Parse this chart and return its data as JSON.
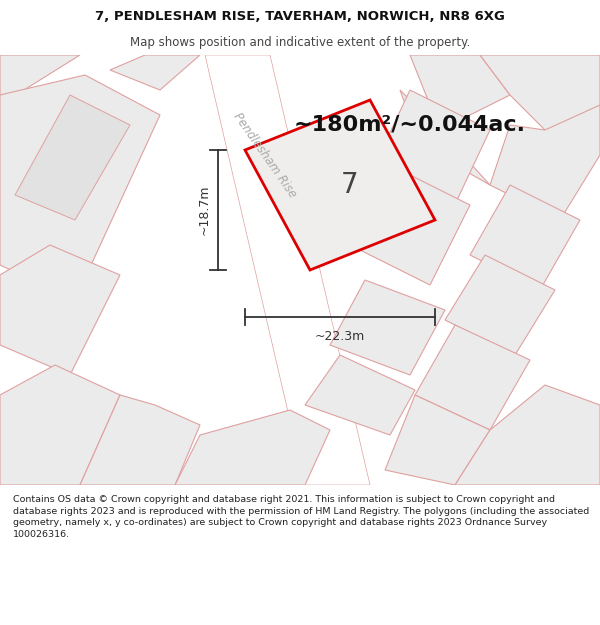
{
  "title_line1": "7, PENDLESHAM RISE, TAVERHAM, NORWICH, NR8 6XG",
  "title_line2": "Map shows position and indicative extent of the property.",
  "area_label": "~180m²/~0.044ac.",
  "house_number": "7",
  "dim_height": "~18.7m",
  "dim_width": "~22.3m",
  "road_label": "Pendlesham Rise",
  "footer_text": "Contains OS data © Crown copyright and database right 2021. This information is subject to Crown copyright and database rights 2023 and is reproduced with the permission of HM Land Registry. The polygons (including the associated geometry, namely x, y co-ordinates) are subject to Crown copyright and database rights 2023 Ordnance Survey 100026316.",
  "map_bg": "#f5f3f1",
  "plot_fill": "#f0eeed",
  "plot_outline_color": "#dd0000",
  "neighbor_fill": "#ebebeb",
  "neighbor_outline": "#e0a0a0",
  "road_color": "#ffffff",
  "road_outline": "#e0a0a0",
  "footer_bg": "#ffffff",
  "title_bg": "#ffffff",
  "dim_color": "#333333",
  "text_color": "#111111",
  "road_text_color": "#aaaaaa"
}
